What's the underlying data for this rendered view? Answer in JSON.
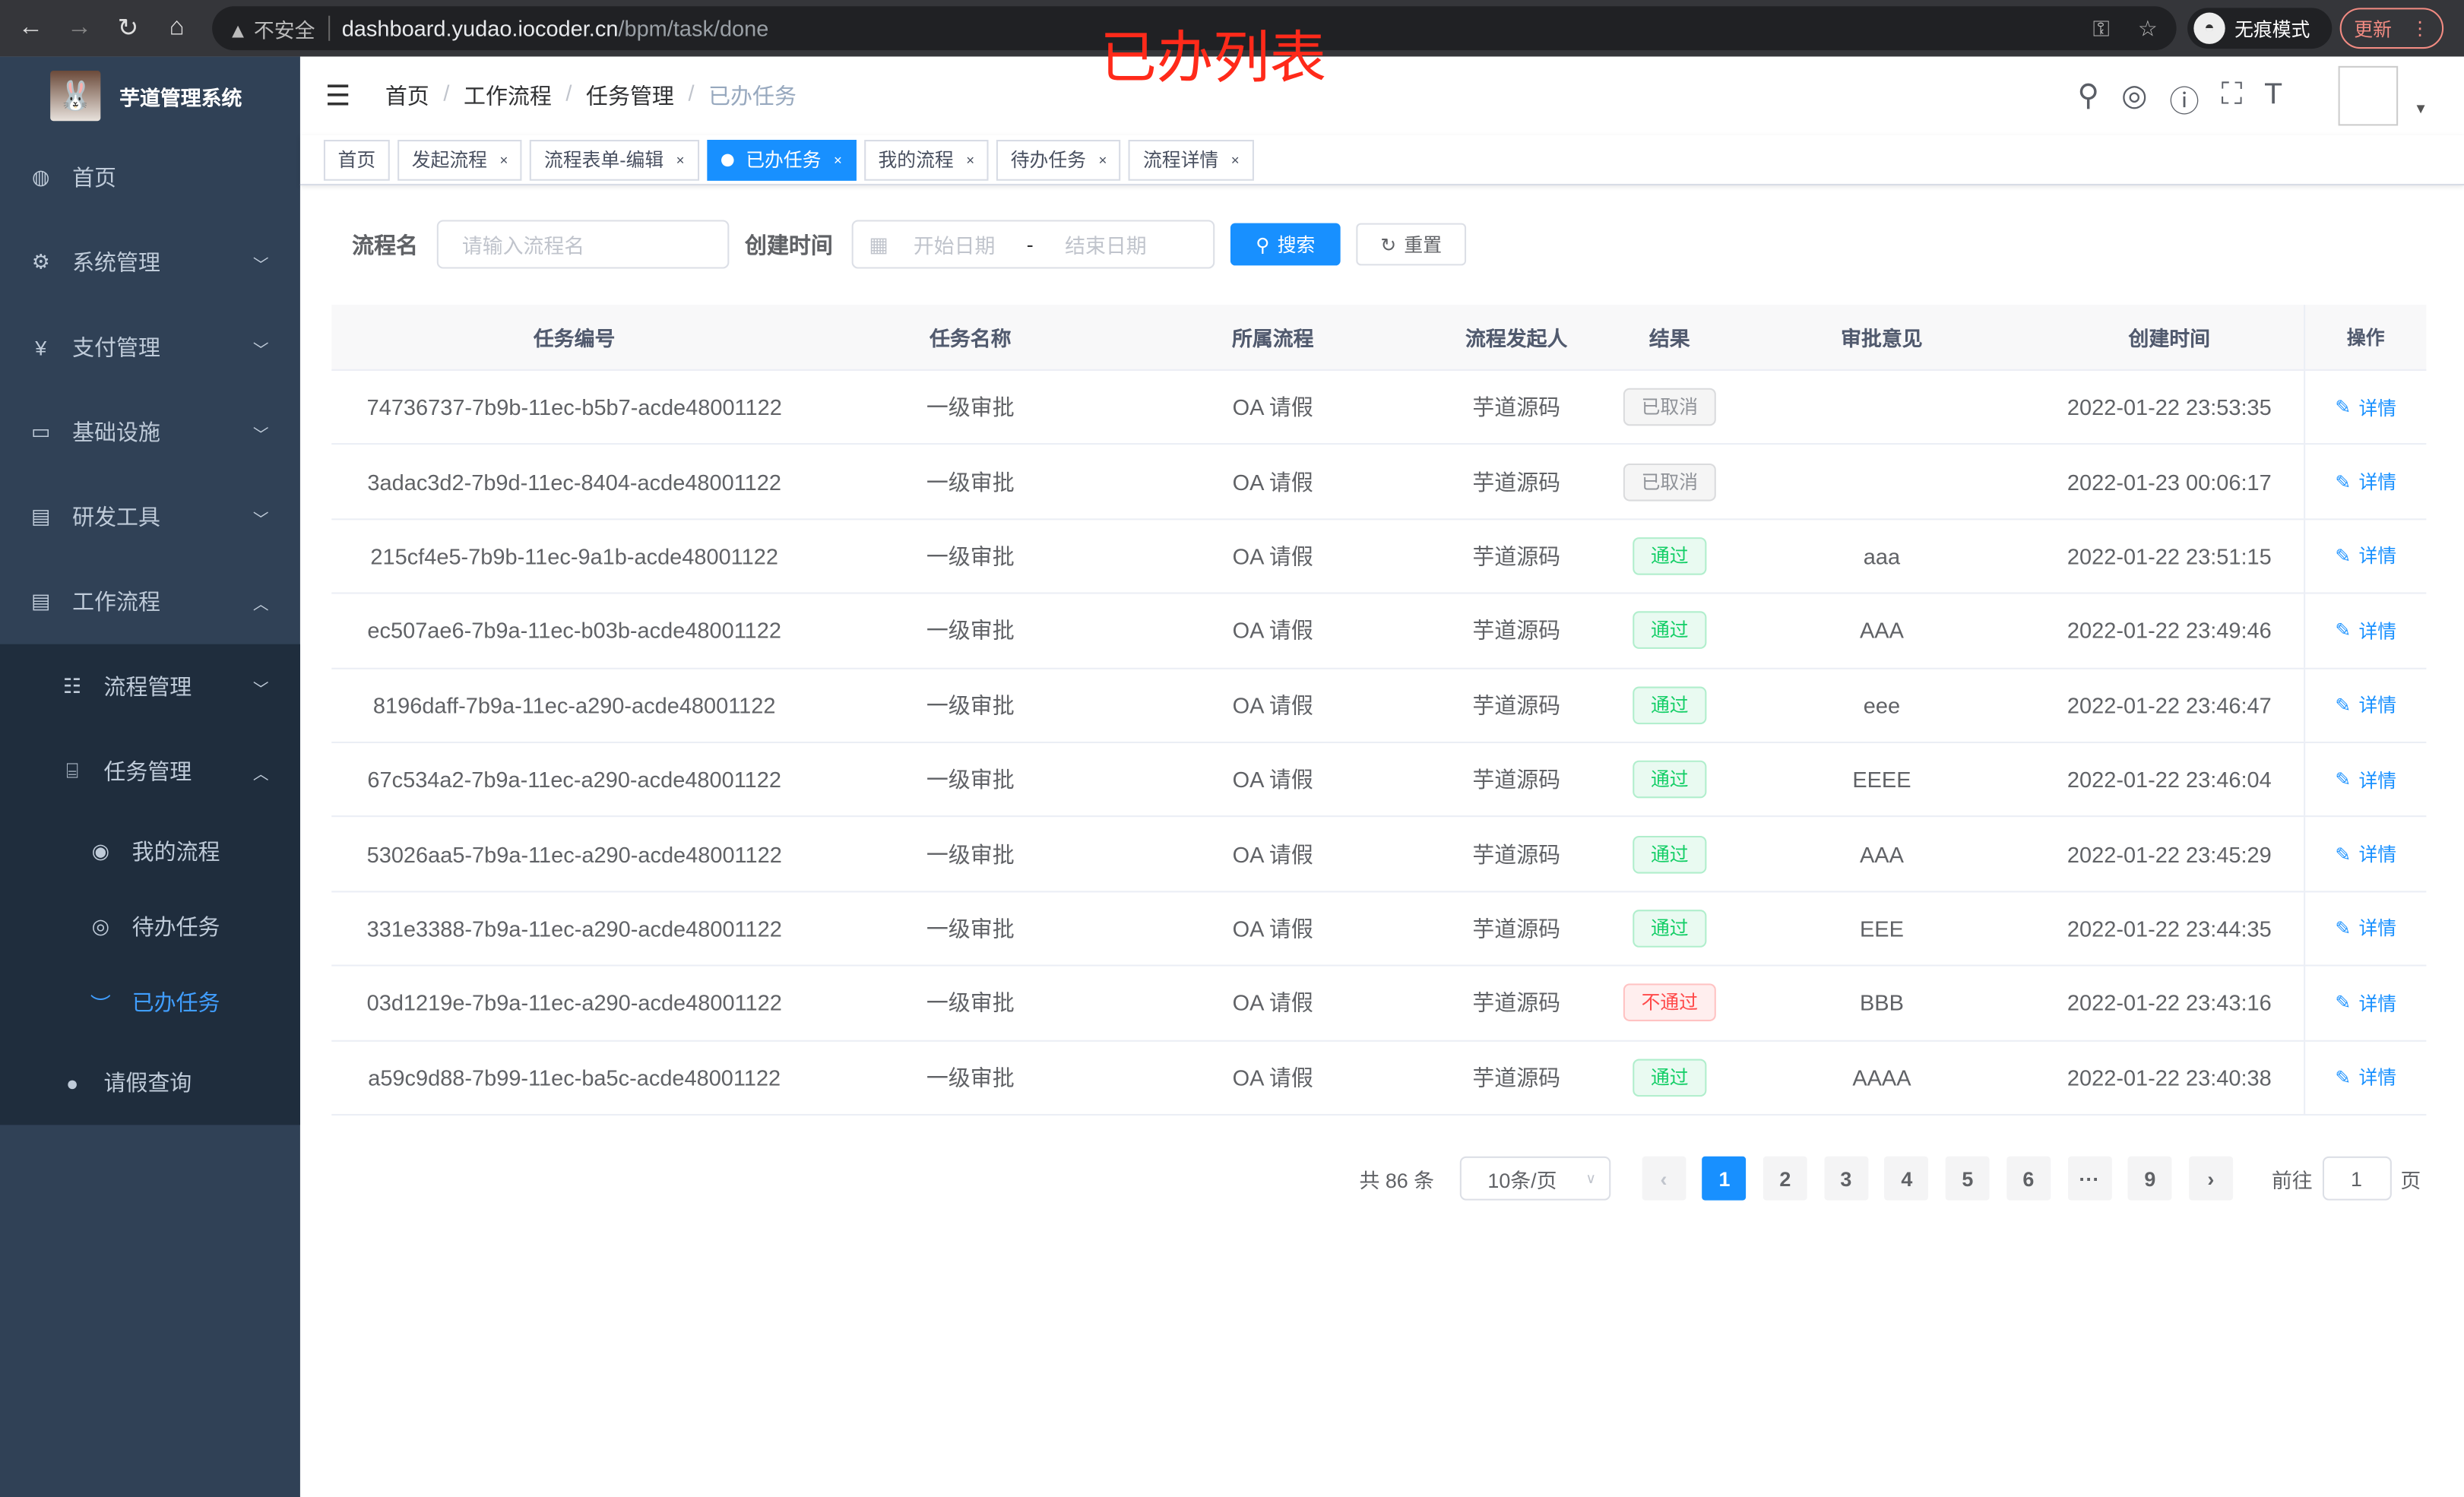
{
  "browser": {
    "security": "不安全",
    "url_host": "dashboard.yudao.iocoder.cn",
    "url_path": "/bpm/task/done",
    "incognito": "无痕模式",
    "update": "更新"
  },
  "annotation": "已办列表",
  "app": {
    "title": "芋道管理系统"
  },
  "sidebar": {
    "items": [
      {
        "label": "首页",
        "icon": "dashboard-icon"
      },
      {
        "label": "系统管理",
        "icon": "gear-icon"
      },
      {
        "label": "支付管理",
        "icon": "yen-icon"
      },
      {
        "label": "基础设施",
        "icon": "monitor-icon"
      },
      {
        "label": "研发工具",
        "icon": "toolbox-icon"
      },
      {
        "label": "工作流程",
        "icon": "toolbox-icon"
      }
    ],
    "sub": [
      {
        "label": "流程管理",
        "icon": "list-icon"
      },
      {
        "label": "任务管理",
        "icon": "tree-icon"
      },
      {
        "label": "我的流程",
        "icon": "user-icon"
      },
      {
        "label": "待办任务",
        "icon": "eye-icon"
      },
      {
        "label": "已办任务",
        "icon": "eye-closed-icon"
      },
      {
        "label": "请假查询",
        "icon": "person-icon"
      }
    ]
  },
  "breadcrumb": [
    "首页",
    "工作流程",
    "任务管理",
    "已办任务"
  ],
  "tags": [
    {
      "label": "首页"
    },
    {
      "label": "发起流程"
    },
    {
      "label": "流程表单-编辑"
    },
    {
      "label": "已办任务",
      "active": true
    },
    {
      "label": "我的流程"
    },
    {
      "label": "待办任务"
    },
    {
      "label": "流程详情"
    }
  ],
  "search": {
    "name_label": "流程名",
    "name_placeholder": "请输入流程名",
    "time_label": "创建时间",
    "start_placeholder": "开始日期",
    "range_sep": "-",
    "end_placeholder": "结束日期",
    "search_btn": "搜索",
    "reset_btn": "重置"
  },
  "table": {
    "columns": [
      "任务编号",
      "任务名称",
      "所属流程",
      "流程发起人",
      "结果",
      "审批意见",
      "创建时间",
      "操作"
    ],
    "rows": [
      [
        "74736737-7b9b-11ec-b5b7-acde48001122",
        "一级审批",
        "OA 请假",
        "芋道源码",
        "已取消",
        "",
        "2022-01-22 23:53:35",
        "详情"
      ],
      [
        "3adac3d2-7b9d-11ec-8404-acde48001122",
        "一级审批",
        "OA 请假",
        "芋道源码",
        "已取消",
        "",
        "2022-01-23 00:06:17",
        "详情"
      ],
      [
        "215cf4e5-7b9b-11ec-9a1b-acde48001122",
        "一级审批",
        "OA 请假",
        "芋道源码",
        "通过",
        "aaa",
        "2022-01-22 23:51:15",
        "详情"
      ],
      [
        "ec507ae6-7b9a-11ec-b03b-acde48001122",
        "一级审批",
        "OA 请假",
        "芋道源码",
        "通过",
        "AAA",
        "2022-01-22 23:49:46",
        "详情"
      ],
      [
        "8196daff-7b9a-11ec-a290-acde48001122",
        "一级审批",
        "OA 请假",
        "芋道源码",
        "通过",
        "eee",
        "2022-01-22 23:46:47",
        "详情"
      ],
      [
        "67c534a2-7b9a-11ec-a290-acde48001122",
        "一级审批",
        "OA 请假",
        "芋道源码",
        "通过",
        "EEEE",
        "2022-01-22 23:46:04",
        "详情"
      ],
      [
        "53026aa5-7b9a-11ec-a290-acde48001122",
        "一级审批",
        "OA 请假",
        "芋道源码",
        "通过",
        "AAA",
        "2022-01-22 23:45:29",
        "详情"
      ],
      [
        "331e3388-7b9a-11ec-a290-acde48001122",
        "一级审批",
        "OA 请假",
        "芋道源码",
        "通过",
        "EEE",
        "2022-01-22 23:44:35",
        "详情"
      ],
      [
        "03d1219e-7b9a-11ec-a290-acde48001122",
        "一级审批",
        "OA 请假",
        "芋道源码",
        "不通过",
        "BBB",
        "2022-01-22 23:43:16",
        "详情"
      ],
      [
        "a59c9d88-7b99-11ec-ba5c-acde48001122",
        "一级审批",
        "OA 请假",
        "芋道源码",
        "通过",
        "AAAA",
        "2022-01-22 23:40:38",
        "详情"
      ]
    ]
  },
  "result_colors": {
    "已取消": "#909399",
    "通过": "#13ce66",
    "不通过": "#ff4949"
  },
  "pagination": {
    "total": "共 86 条",
    "page_size": "10条/页",
    "pages": [
      "1",
      "2",
      "3",
      "4",
      "5",
      "6",
      "···",
      "9"
    ],
    "current": "1",
    "goto_label": "前往",
    "goto_value": "1",
    "goto_suffix": "页"
  },
  "accent": "#1890ff"
}
